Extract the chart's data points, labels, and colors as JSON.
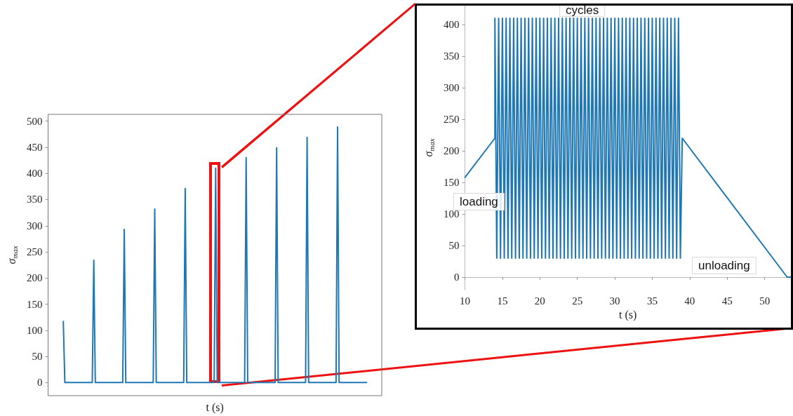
{
  "chart_data": [
    {
      "type": "line",
      "xlabel": "t (s)",
      "ylabel": "σ$_{max}$",
      "tick_labels": "y",
      "grid": false,
      "marker": "none",
      "categories": [
        null,
        null,
        null,
        null,
        null,
        null,
        null,
        null,
        null,
        null,
        null,
        null,
        null,
        null,
        null,
        null,
        null,
        null,
        null,
        null,
        null,
        null,
        null,
        null,
        null,
        null,
        null,
        null,
        null,
        null,
        null,
        null,
        null,
        null,
        null,
        null,
        null,
        null,
        null,
        null,
        null,
        null,
        null,
        null,
        null,
        null,
        null,
        null,
        null,
        null,
        null,
        null,
        null,
        null,
        null,
        null,
        null,
        null,
        null,
        null,
        null,
        null,
        null,
        null,
        null,
        null,
        null,
        null,
        null,
        null,
        null,
        null,
        null,
        null,
        null,
        null,
        null,
        null,
        null,
        null,
        null,
        null,
        null,
        null,
        null,
        null,
        null,
        null,
        null,
        null,
        null,
        null,
        null,
        null,
        null,
        null,
        null,
        null,
        null,
        null,
        null,
        null,
        null,
        null,
        null,
        null,
        null,
        null,
        null,
        null,
        null,
        null,
        null,
        null,
        null,
        null,
        null,
        null,
        null,
        null,
        null,
        null,
        null,
        null,
        null,
        null,
        null,
        null,
        null,
        null,
        null,
        null,
        null,
        null,
        null,
        null,
        null,
        null,
        null,
        null,
        null,
        null,
        null,
        null,
        null,
        null,
        null,
        null,
        null,
        null,
        null,
        null,
        null,
        null,
        null,
        null,
        null,
        null,
        null,
        null,
        null,
        null,
        null,
        null,
        null,
        null,
        null,
        null,
        null,
        null,
        null,
        null,
        null,
        null,
        null,
        null,
        null,
        null,
        null,
        null,
        null,
        null,
        null,
        null,
        null,
        null,
        null,
        null,
        null,
        null,
        null,
        null,
        null,
        null,
        null,
        null,
        null,
        null,
        null,
        null,
        null,
        null,
        null,
        null,
        null,
        null,
        null,
        null,
        null,
        null,
        null,
        null,
        null,
        null,
        null,
        null,
        null,
        null,
        null,
        null
      ],
      "series": [
        {
          "color": "#1f77b4",
          "values": [
            null,
            null,
            null,
            null,
            null,
            null,
            null,
            null,
            null,
            null,
            117,
            0,
            0,
            0,
            0,
            0,
            0,
            0,
            0,
            0,
            0,
            0,
            0,
            0,
            0,
            0,
            0,
            0,
            0,
            0,
            234,
            0,
            0,
            0,
            0,
            0,
            0,
            0,
            0,
            0,
            0,
            0,
            0,
            0,
            0,
            0,
            0,
            0,
            0,
            0,
            293,
            0,
            0,
            0,
            0,
            0,
            0,
            0,
            0,
            0,
            0,
            0,
            0,
            0,
            0,
            0,
            0,
            0,
            0,
            0,
            332,
            0,
            0,
            0,
            0,
            0,
            0,
            0,
            0,
            0,
            0,
            0,
            0,
            0,
            0,
            0,
            0,
            0,
            0,
            0,
            371,
            0,
            0,
            0,
            0,
            0,
            0,
            0,
            0,
            0,
            0,
            0,
            0,
            0,
            0,
            0,
            0,
            0,
            0,
            0,
            410,
            0,
            0,
            0,
            0,
            0,
            0,
            0,
            0,
            0,
            0,
            0,
            0,
            0,
            0,
            0,
            0,
            0,
            0,
            0,
            430,
            0,
            0,
            0,
            0,
            0,
            0,
            0,
            0,
            0,
            0,
            0,
            0,
            0,
            0,
            0,
            0,
            0,
            0,
            0,
            449,
            0,
            0,
            0,
            0,
            0,
            0,
            0,
            0,
            0,
            0,
            0,
            0,
            0,
            0,
            0,
            0,
            0,
            0,
            0,
            469,
            0,
            0,
            0,
            0,
            0,
            0,
            0,
            0,
            0,
            0,
            0,
            0,
            0,
            0,
            0,
            0,
            0,
            0,
            0,
            489,
            0,
            0,
            0,
            0,
            0,
            0,
            0,
            0,
            0,
            0,
            0,
            0,
            0,
            0,
            0,
            0,
            0,
            0,
            0,
            null,
            null,
            null,
            null,
            null,
            null,
            null,
            null,
            null,
            null
          ]
        }
      ],
      "ylim": [
        -25,
        513
      ],
      "yticks": [
        0,
        50,
        100,
        150,
        200,
        250,
        300,
        350,
        400,
        450,
        500
      ]
    },
    {
      "type": "line",
      "xlabel": "t (s)",
      "ylabel": "σ$_{max}$",
      "grid": false,
      "marker": "none",
      "series": [
        {
          "color": "#1f77b4",
          "x": [
            10,
            14,
            14,
            14.25,
            14.5,
            14.75,
            15,
            15.25,
            15.5,
            15.75,
            16,
            16.25,
            16.5,
            16.75,
            17,
            17.25,
            17.5,
            17.75,
            18,
            18.25,
            18.5,
            18.75,
            19,
            19.25,
            19.5,
            19.75,
            20,
            20.25,
            20.5,
            20.75,
            21,
            21.25,
            21.5,
            21.75,
            22,
            22.25,
            22.5,
            22.75,
            23,
            23.25,
            23.5,
            23.75,
            24,
            24.25,
            24.5,
            24.75,
            25,
            25.25,
            25.5,
            25.75,
            26,
            26.25,
            26.5,
            26.75,
            27,
            27.25,
            27.5,
            27.75,
            28,
            28.25,
            28.5,
            28.75,
            29,
            29.25,
            29.5,
            29.75,
            30,
            30.25,
            30.5,
            30.75,
            31,
            31.25,
            31.5,
            31.75,
            32,
            32.25,
            32.5,
            32.75,
            33,
            33.25,
            33.5,
            33.75,
            34,
            34.25,
            34.5,
            34.75,
            35,
            35.25,
            35.5,
            35.75,
            36,
            36.25,
            36.5,
            36.75,
            37,
            37.25,
            37.5,
            37.75,
            38,
            38.25,
            38.5,
            38.75,
            39,
            53,
            53.5
          ],
          "values": [
            158,
            220,
            410,
            30,
            410,
            30,
            410,
            30,
            410,
            30,
            410,
            30,
            410,
            30,
            410,
            30,
            410,
            30,
            410,
            30,
            410,
            30,
            410,
            30,
            410,
            30,
            410,
            30,
            410,
            30,
            410,
            30,
            410,
            30,
            410,
            30,
            410,
            30,
            410,
            30,
            410,
            30,
            410,
            30,
            410,
            30,
            410,
            30,
            410,
            30,
            410,
            30,
            410,
            30,
            410,
            30,
            410,
            30,
            410,
            30,
            410,
            30,
            410,
            30,
            410,
            30,
            410,
            30,
            410,
            30,
            410,
            30,
            410,
            30,
            410,
            30,
            410,
            30,
            410,
            30,
            410,
            30,
            410,
            30,
            410,
            30,
            410,
            30,
            410,
            30,
            410,
            30,
            410,
            30,
            410,
            30,
            410,
            30,
            410,
            30,
            410,
            30,
            220,
            0,
            0
          ]
        }
      ],
      "xlim": [
        10,
        53.5
      ],
      "xticks": [
        10,
        15,
        20,
        25,
        30,
        35,
        40,
        45,
        50
      ],
      "ylim": [
        -20,
        430
      ],
      "yticks": [
        0,
        50,
        100,
        150,
        200,
        250,
        300,
        350,
        400
      ],
      "annotations": [
        "cycles",
        "loading",
        "unloading"
      ]
    }
  ]
}
